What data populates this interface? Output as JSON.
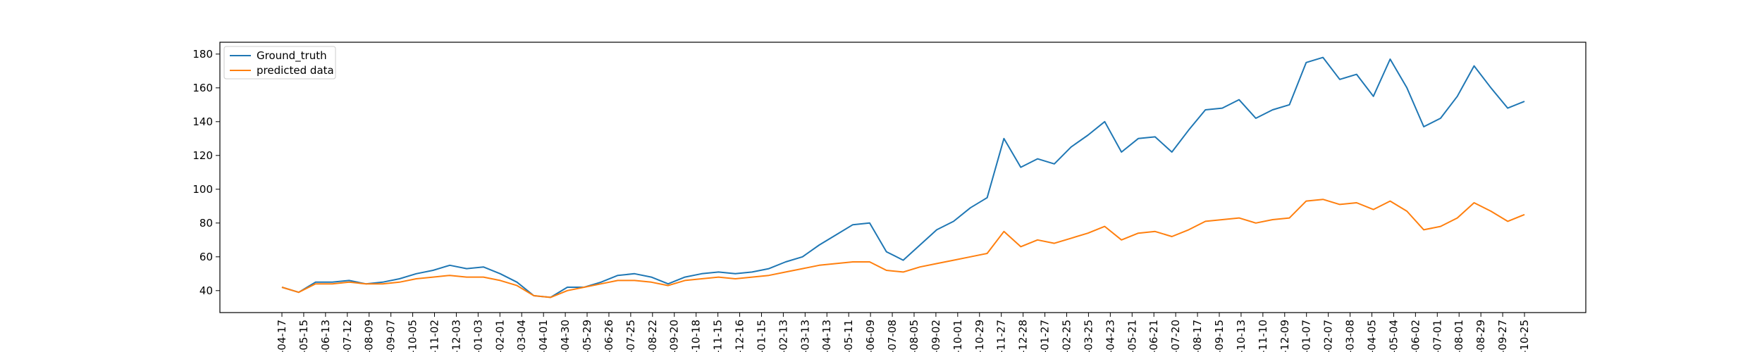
{
  "chart_data": {
    "type": "line",
    "title": "",
    "xlabel": "",
    "ylabel": "",
    "ylim": [
      27,
      187
    ],
    "yticks": [
      40,
      60,
      80,
      100,
      120,
      140,
      160,
      180
    ],
    "xtick_labels": [
      "-04-17",
      "-05-15",
      "-06-13",
      "-07-12",
      "-08-09",
      "-09-07",
      "-10-05",
      "-11-02",
      "-12-03",
      "-01-03",
      "-02-01",
      "-03-04",
      "-04-01",
      "-04-30",
      "-05-29",
      "-06-26",
      "-07-25",
      "-08-22",
      "-09-20",
      "-10-18",
      "-11-15",
      "-12-16",
      "-01-15",
      "-02-13",
      "-03-13",
      "-04-13",
      "-05-11",
      "-06-09",
      "-07-08",
      "-08-05",
      "-09-02",
      "-10-01",
      "-10-29",
      "-11-27",
      "-12-28",
      "-01-27",
      "-02-25",
      "-03-25",
      "-04-23",
      "-05-21",
      "-06-21",
      "-07-20",
      "-08-17",
      "-09-15",
      "-10-13",
      "-11-10",
      "-12-09",
      "-01-07",
      "-02-07",
      "-03-08",
      "-04-05",
      "-05-04",
      "-06-02",
      "-07-01",
      "-08-01",
      "-08-29",
      "-09-27",
      "-10-25"
    ],
    "legend": {
      "position": "upper-left"
    },
    "grid": false,
    "series": [
      {
        "name": "Ground_truth",
        "color": "#1f77b4",
        "values": [
          42,
          39,
          45,
          45,
          46,
          44,
          45,
          47,
          50,
          52,
          55,
          53,
          54,
          50,
          45,
          37,
          36,
          42,
          42,
          45,
          49,
          50,
          48,
          44,
          48,
          50,
          51,
          50,
          51,
          53,
          57,
          60,
          67,
          73,
          79,
          80,
          63,
          58,
          67,
          76,
          81,
          89,
          95,
          130,
          113,
          118,
          115,
          125,
          132,
          140,
          122,
          130,
          131,
          122,
          135,
          147,
          148,
          153,
          142,
          147,
          150,
          175,
          178,
          165,
          168,
          155,
          177,
          160,
          137,
          142,
          155,
          173,
          160,
          148,
          152
        ]
      },
      {
        "name": "predicted data",
        "color": "#ff7f0e",
        "values": [
          42,
          39,
          44,
          44,
          45,
          44,
          44,
          45,
          47,
          48,
          49,
          48,
          48,
          46,
          43,
          37,
          36,
          40,
          42,
          44,
          46,
          46,
          45,
          43,
          46,
          47,
          48,
          47,
          48,
          49,
          51,
          53,
          55,
          56,
          57,
          57,
          52,
          51,
          54,
          56,
          58,
          60,
          62,
          75,
          66,
          70,
          68,
          71,
          74,
          78,
          70,
          74,
          75,
          72,
          76,
          81,
          82,
          83,
          80,
          82,
          83,
          93,
          94,
          91,
          92,
          88,
          93,
          87,
          76,
          78,
          83,
          92,
          87,
          81,
          85
        ]
      }
    ]
  }
}
